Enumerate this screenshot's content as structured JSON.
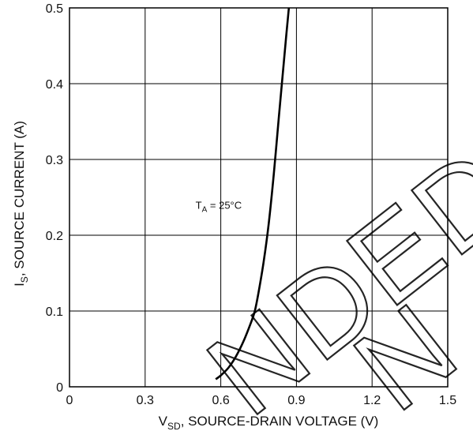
{
  "watermark": {
    "line1": "NDED",
    "line2": "N"
  },
  "chart_data": {
    "type": "line",
    "xlabel": {
      "main": "V",
      "sub": "SD",
      "rest": ", SOURCE-DRAIN VOLTAGE (V)"
    },
    "ylabel": {
      "main": "I",
      "sub": "S",
      "rest": ", SOURCE CURRENT (A)"
    },
    "xlim": [
      0,
      1.5
    ],
    "ylim": [
      0,
      0.5
    ],
    "x_ticks": [
      "0",
      "0.3",
      "0.6",
      "0.9",
      "1.2",
      "1.5"
    ],
    "y_ticks": [
      "0",
      "0.1",
      "0.2",
      "0.3",
      "0.4",
      "0.5"
    ],
    "grid": true,
    "annotation": {
      "main": "T",
      "sub": "A",
      "rest": " = 25°C",
      "x": 0.5,
      "y": 0.235
    },
    "series": [
      {
        "x": [
          0.58,
          0.6,
          0.63,
          0.66,
          0.69,
          0.72,
          0.735,
          0.75,
          0.77,
          0.79,
          0.81,
          0.83,
          0.845,
          0.86,
          0.87
        ],
        "y": [
          0.01,
          0.015,
          0.025,
          0.04,
          0.06,
          0.085,
          0.1,
          0.125,
          0.165,
          0.215,
          0.28,
          0.355,
          0.41,
          0.465,
          0.5
        ]
      }
    ]
  }
}
